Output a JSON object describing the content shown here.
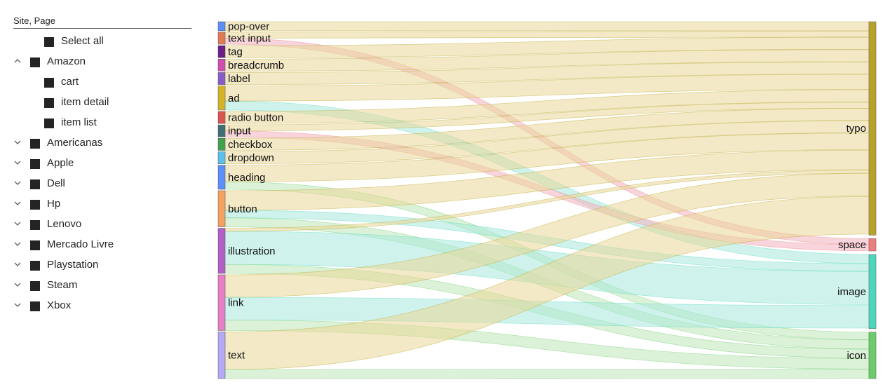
{
  "slicer": {
    "title": "Site, Page",
    "items": [
      {
        "label": "Select all",
        "level": 1,
        "expander": "none"
      },
      {
        "label": "Amazon",
        "level": 0,
        "expander": "up"
      },
      {
        "label": "cart",
        "level": 1,
        "expander": "none"
      },
      {
        "label": "item detail",
        "level": 1,
        "expander": "none"
      },
      {
        "label": "item list",
        "level": 1,
        "expander": "none"
      },
      {
        "label": "Americanas",
        "level": 0,
        "expander": "down"
      },
      {
        "label": "Apple",
        "level": 0,
        "expander": "down"
      },
      {
        "label": "Dell",
        "level": 0,
        "expander": "down"
      },
      {
        "label": "Hp",
        "level": 0,
        "expander": "down"
      },
      {
        "label": "Lenovo",
        "level": 0,
        "expander": "down"
      },
      {
        "label": "Mercado Livre",
        "level": 0,
        "expander": "down"
      },
      {
        "label": "Playstation",
        "level": 0,
        "expander": "down"
      },
      {
        "label": "Steam",
        "level": 0,
        "expander": "down"
      },
      {
        "label": "Xbox",
        "level": 0,
        "expander": "down"
      }
    ]
  },
  "chart_data": {
    "type": "sankey",
    "title": "",
    "sources": [
      {
        "name": "pop-over",
        "color": "#5b8ff9"
      },
      {
        "name": "text input",
        "color": "#e07b54"
      },
      {
        "name": "tag",
        "color": "#6b1e86"
      },
      {
        "name": "breadcrumb",
        "color": "#d14fb0"
      },
      {
        "name": "label",
        "color": "#8b5cc9"
      },
      {
        "name": "ad",
        "color": "#d4b426"
      },
      {
        "name": "radio button",
        "color": "#d9534f"
      },
      {
        "name": "input",
        "color": "#3f6f74"
      },
      {
        "name": "checkbox",
        "color": "#3fa34d"
      },
      {
        "name": "dropdown",
        "color": "#5bc0eb"
      },
      {
        "name": "heading",
        "color": "#5b8ff9"
      },
      {
        "name": "button",
        "color": "#f4a261"
      },
      {
        "name": "illustration",
        "color": "#b25fc8"
      },
      {
        "name": "link",
        "color": "#e67fc6"
      },
      {
        "name": "text",
        "color": "#b7a8f5"
      }
    ],
    "targets": [
      {
        "name": "typo",
        "color": "#b8a32a",
        "link_color": "#ead798"
      },
      {
        "name": "space",
        "color": "#ef7f7f",
        "link_color": "#f2b3bf"
      },
      {
        "name": "image",
        "color": "#4dd6bd",
        "link_color": "#a7eadc"
      },
      {
        "name": "icon",
        "color": "#6ccc6c",
        "link_color": "#bde8b8"
      }
    ],
    "links": [
      {
        "source": "pop-over",
        "target": "typo",
        "value": 12
      },
      {
        "source": "text input",
        "target": "space",
        "value": 8
      },
      {
        "source": "text input",
        "target": "typo",
        "value": 8
      },
      {
        "source": "tag",
        "target": "typo",
        "value": 16
      },
      {
        "source": "breadcrumb",
        "target": "typo",
        "value": 16
      },
      {
        "source": "label",
        "target": "typo",
        "value": 16
      },
      {
        "source": "ad",
        "target": "image",
        "value": 12
      },
      {
        "source": "ad",
        "target": "typo",
        "value": 20
      },
      {
        "source": "radio button",
        "target": "typo",
        "value": 16
      },
      {
        "source": "input",
        "target": "space",
        "value": 8
      },
      {
        "source": "input",
        "target": "typo",
        "value": 8
      },
      {
        "source": "checkbox",
        "target": "typo",
        "value": 16
      },
      {
        "source": "dropdown",
        "target": "typo",
        "value": 16
      },
      {
        "source": "heading",
        "target": "icon",
        "value": 10
      },
      {
        "source": "heading",
        "target": "typo",
        "value": 22
      },
      {
        "source": "button",
        "target": "image",
        "value": 10
      },
      {
        "source": "button",
        "target": "icon",
        "value": 12
      },
      {
        "source": "button",
        "target": "typo",
        "value": 26
      },
      {
        "source": "illustration",
        "target": "image",
        "value": 44
      },
      {
        "source": "illustration",
        "target": "icon",
        "value": 12
      },
      {
        "source": "illustration",
        "target": "typo",
        "value": 4
      },
      {
        "source": "link",
        "target": "typo",
        "value": 30
      },
      {
        "source": "link",
        "target": "image",
        "value": 30
      },
      {
        "source": "link",
        "target": "icon",
        "value": 14
      },
      {
        "source": "text",
        "target": "typo",
        "value": 50
      },
      {
        "source": "text",
        "target": "icon",
        "value": 12
      }
    ]
  }
}
